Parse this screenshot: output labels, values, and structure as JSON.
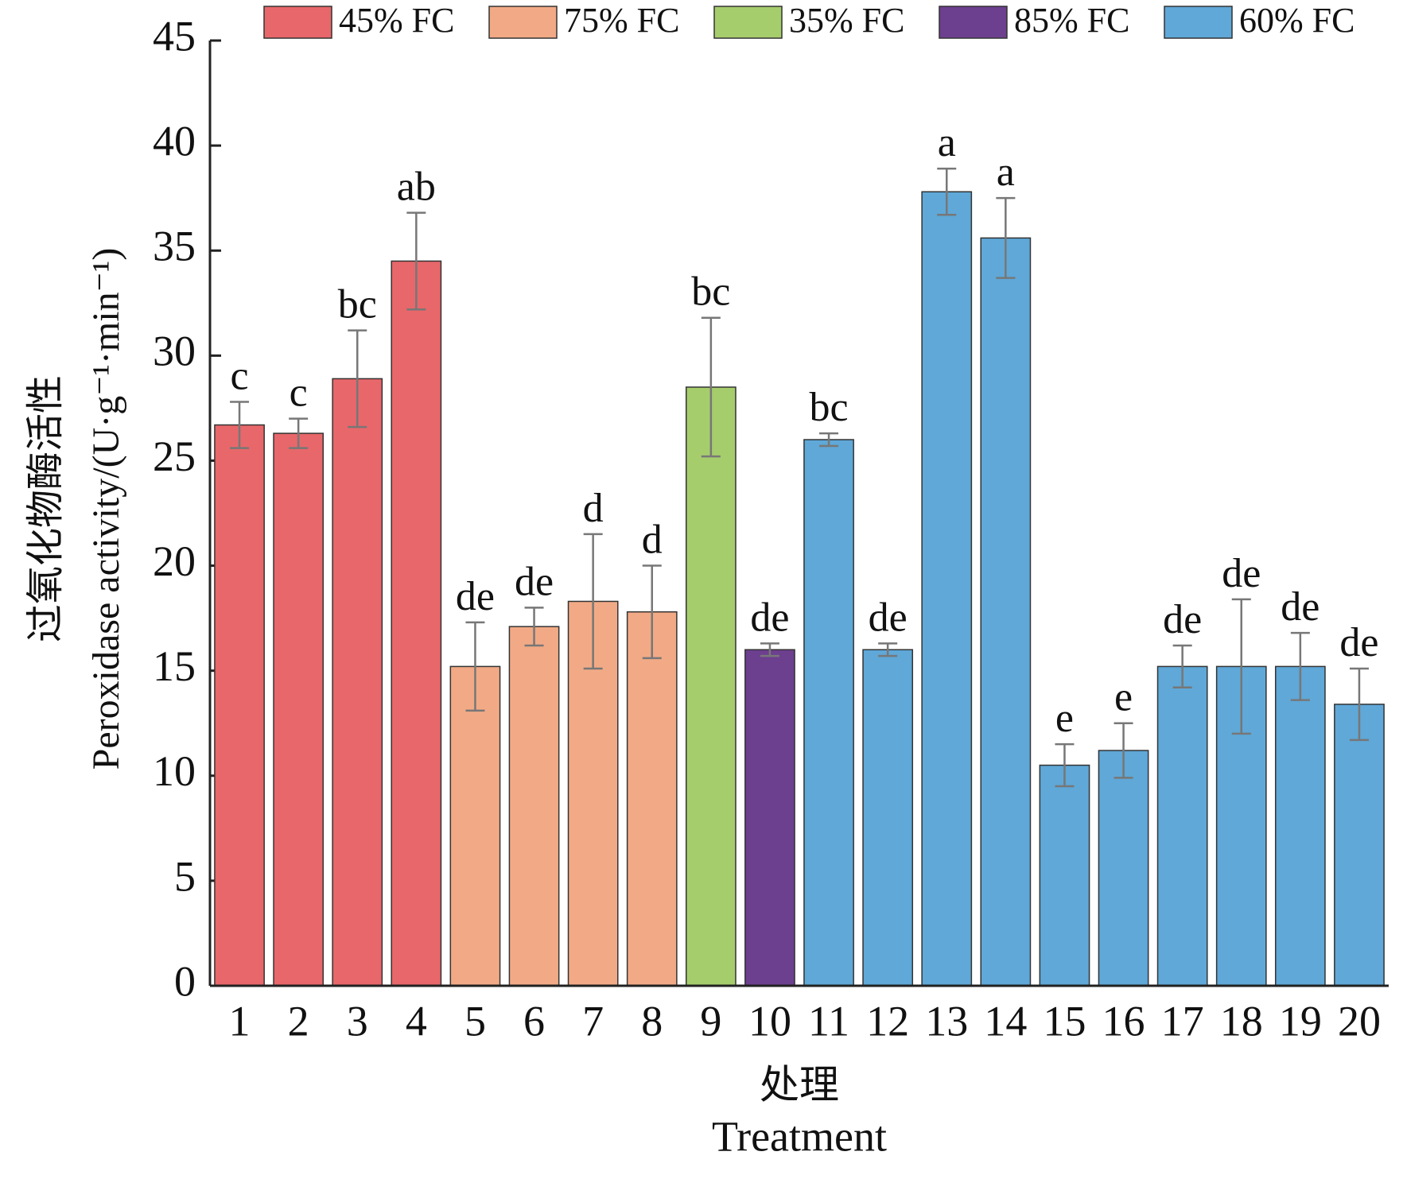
{
  "chart_data": {
    "type": "bar",
    "ylabel_cn": "过氧化物酶活性",
    "ylabel": "Peroxidase activity/(U·g⁻¹·min⁻¹)",
    "xlabel_cn": "处理",
    "xlabel": "Treatment",
    "categories": [
      "1",
      "2",
      "3",
      "4",
      "5",
      "6",
      "7",
      "8",
      "9",
      "10",
      "11",
      "12",
      "13",
      "14",
      "15",
      "16",
      "17",
      "18",
      "19",
      "20"
    ],
    "series": [
      {
        "name": "45% FC",
        "color": "#e8676a",
        "values": [
          26.7,
          26.3,
          28.9,
          34.5,
          null,
          null,
          null,
          null,
          null,
          null,
          null,
          null,
          null,
          null,
          null,
          null,
          null,
          null,
          null,
          null
        ],
        "errors": [
          1.1,
          0.7,
          2.3,
          2.3,
          null,
          null,
          null,
          null,
          null,
          null,
          null,
          null,
          null,
          null,
          null,
          null,
          null,
          null,
          null,
          null
        ]
      },
      {
        "name": "75% FC",
        "color": "#f2aa86",
        "values": [
          null,
          null,
          null,
          null,
          15.2,
          17.1,
          18.3,
          17.8,
          null,
          null,
          null,
          null,
          null,
          null,
          null,
          null,
          null,
          null,
          null,
          null
        ],
        "errors": [
          null,
          null,
          null,
          null,
          2.1,
          0.9,
          3.2,
          2.2,
          null,
          null,
          null,
          null,
          null,
          null,
          null,
          null,
          null,
          null,
          null,
          null
        ]
      },
      {
        "name": "35% FC",
        "color": "#a6cd6c",
        "values": [
          null,
          null,
          null,
          null,
          null,
          null,
          null,
          null,
          28.5,
          null,
          null,
          null,
          null,
          null,
          null,
          null,
          null,
          null,
          null,
          null
        ],
        "errors": [
          null,
          null,
          null,
          null,
          null,
          null,
          null,
          null,
          3.3,
          null,
          null,
          null,
          null,
          null,
          null,
          null,
          null,
          null,
          null,
          null
        ]
      },
      {
        "name": "85% FC",
        "color": "#6d3f8f",
        "values": [
          null,
          null,
          null,
          null,
          null,
          null,
          null,
          null,
          null,
          16.0,
          null,
          null,
          null,
          null,
          null,
          null,
          null,
          null,
          null,
          null
        ],
        "errors": [
          null,
          null,
          null,
          null,
          null,
          null,
          null,
          null,
          null,
          0.3,
          null,
          null,
          null,
          null,
          null,
          null,
          null,
          null,
          null,
          null
        ]
      },
      {
        "name": "60% FC",
        "color": "#5fa8d8",
        "values": [
          null,
          null,
          null,
          null,
          null,
          null,
          null,
          null,
          null,
          null,
          26.0,
          16.0,
          37.8,
          35.6,
          10.5,
          11.2,
          15.2,
          15.2,
          15.2,
          13.4
        ],
        "errors": [
          null,
          null,
          null,
          null,
          null,
          null,
          null,
          null,
          null,
          null,
          0.3,
          0.3,
          1.1,
          1.9,
          1.0,
          1.3,
          1.0,
          3.2,
          1.6,
          1.7
        ]
      }
    ],
    "letters": [
      "c",
      "c",
      "bc",
      "ab",
      "de",
      "de",
      "d",
      "d",
      "bc",
      "de",
      "bc",
      "de",
      "a",
      "a",
      "e",
      "e",
      "de",
      "de",
      "de",
      "de"
    ],
    "ylim": [
      0,
      45
    ],
    "yticks": [
      0,
      5,
      10,
      15,
      20,
      25,
      30,
      35,
      40,
      45
    ],
    "grid": false
  }
}
